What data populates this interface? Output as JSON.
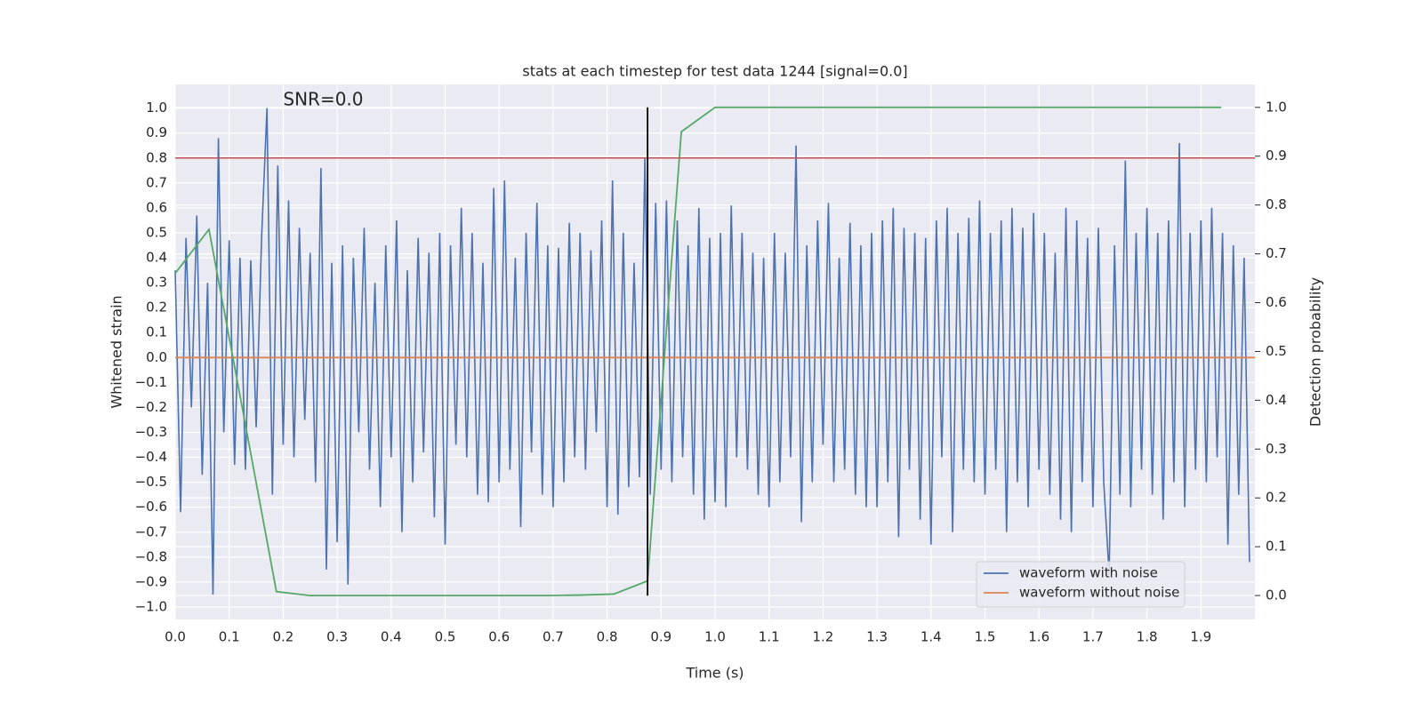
{
  "chart_data": {
    "type": "line",
    "title": "stats at each timestep for test data 1244 [signal=0.0]",
    "xlabel": "Time (s)",
    "ylabel": "Whitened strain",
    "y2label": "Detection probability",
    "annotation": {
      "text": "SNR=0.0",
      "x": 0.2,
      "y": 1.03
    },
    "xlim": [
      0,
      2.0
    ],
    "ylim": [
      -1.05,
      1.095
    ],
    "y2lim": [
      -0.049,
      1.047
    ],
    "xticks": [
      {
        "value": 0,
        "label": "0.0"
      },
      0.1,
      0.2,
      0.3,
      0.4,
      0.5,
      0.6,
      0.7,
      0.8,
      0.9,
      {
        "value": 1,
        "label": "1.0"
      },
      1.1,
      1.2,
      1.3,
      1.4,
      1.5,
      1.6,
      1.7,
      1.8,
      1.9
    ],
    "yticks": [
      {
        "value": -1,
        "label": "−1.0"
      },
      {
        "value": -0.9,
        "label": "−0.9"
      },
      {
        "value": -0.8,
        "label": "−0.8"
      },
      {
        "value": -0.7,
        "label": "−0.7"
      },
      {
        "value": -0.6,
        "label": "−0.6"
      },
      {
        "value": -0.5,
        "label": "−0.5"
      },
      {
        "value": -0.4,
        "label": "−0.4"
      },
      {
        "value": -0.3,
        "label": "−0.3"
      },
      {
        "value": -0.2,
        "label": "−0.2"
      },
      {
        "value": -0.1,
        "label": "−0.1"
      },
      {
        "value": 0,
        "label": "0.0"
      },
      0.1,
      0.2,
      0.3,
      0.4,
      0.5,
      0.6,
      0.7,
      0.8,
      0.9,
      {
        "value": 1,
        "label": "1.0"
      }
    ],
    "y2ticks": [
      {
        "value": 0,
        "label": "0.0"
      },
      0.1,
      0.2,
      0.3,
      0.4,
      0.5,
      0.6,
      0.7,
      0.8,
      0.9,
      {
        "value": 1,
        "label": "1.0"
      }
    ],
    "grid": true,
    "legend": "lower right",
    "hline": {
      "y": 0.8,
      "color": "#c44e52"
    },
    "vline": {
      "x": 0.875,
      "ymin": 0,
      "ymax": 1,
      "axis": "y2",
      "color": "#000000"
    },
    "series": [
      {
        "name": "waveform with noise",
        "color": "#4c72b0",
        "x": [
          0.0,
          0.01,
          0.02,
          0.03,
          0.04,
          0.05,
          0.06,
          0.07,
          0.08,
          0.09,
          0.1,
          0.11,
          0.12,
          0.13,
          0.14,
          0.15,
          0.16,
          0.17,
          0.18,
          0.19,
          0.2,
          0.21,
          0.22,
          0.23,
          0.24,
          0.25,
          0.26,
          0.27,
          0.28,
          0.29,
          0.3,
          0.31,
          0.32,
          0.33,
          0.34,
          0.35,
          0.36,
          0.37,
          0.38,
          0.39,
          0.4,
          0.41,
          0.42,
          0.43,
          0.44,
          0.45,
          0.46,
          0.47,
          0.48,
          0.49,
          0.5,
          0.51,
          0.52,
          0.53,
          0.54,
          0.55,
          0.56,
          0.57,
          0.58,
          0.59,
          0.6,
          0.61,
          0.62,
          0.63,
          0.64,
          0.65,
          0.66,
          0.67,
          0.68,
          0.69,
          0.7,
          0.71,
          0.72,
          0.73,
          0.74,
          0.75,
          0.76,
          0.77,
          0.78,
          0.79,
          0.8,
          0.81,
          0.82,
          0.83,
          0.84,
          0.85,
          0.86,
          0.87,
          0.88,
          0.89,
          0.9,
          0.91,
          0.92,
          0.93,
          0.94,
          0.95,
          0.96,
          0.97,
          0.98,
          0.99,
          1.0,
          1.01,
          1.02,
          1.03,
          1.04,
          1.05,
          1.06,
          1.07,
          1.08,
          1.09,
          1.1,
          1.11,
          1.12,
          1.13,
          1.14,
          1.15,
          1.16,
          1.17,
          1.18,
          1.19,
          1.2,
          1.21,
          1.22,
          1.23,
          1.24,
          1.25,
          1.26,
          1.27,
          1.28,
          1.29,
          1.3,
          1.31,
          1.32,
          1.33,
          1.34,
          1.35,
          1.36,
          1.37,
          1.38,
          1.39,
          1.4,
          1.41,
          1.42,
          1.43,
          1.44,
          1.45,
          1.46,
          1.47,
          1.48,
          1.49,
          1.5,
          1.51,
          1.52,
          1.53,
          1.54,
          1.55,
          1.56,
          1.57,
          1.58,
          1.59,
          1.6,
          1.61,
          1.62,
          1.63,
          1.64,
          1.65,
          1.66,
          1.67,
          1.68,
          1.69,
          1.7,
          1.71,
          1.72,
          1.73,
          1.74,
          1.75,
          1.76,
          1.77,
          1.78,
          1.79,
          1.8,
          1.81,
          1.82,
          1.83,
          1.84,
          1.85,
          1.86,
          1.87,
          1.88,
          1.89,
          1.9,
          1.91,
          1.92,
          1.93,
          1.94,
          1.95,
          1.96,
          1.97,
          1.98,
          1.99
        ],
        "values": [
          0.35,
          -0.62,
          0.48,
          -0.2,
          0.57,
          -0.47,
          0.3,
          -0.95,
          0.88,
          -0.3,
          0.47,
          -0.43,
          0.4,
          -0.45,
          0.39,
          -0.28,
          0.48,
          1.0,
          -0.55,
          0.77,
          -0.35,
          0.63,
          -0.4,
          0.52,
          -0.25,
          0.42,
          -0.5,
          0.76,
          -0.85,
          0.38,
          -0.74,
          0.45,
          -0.91,
          0.4,
          -0.3,
          0.52,
          -0.45,
          0.3,
          -0.6,
          0.45,
          -0.4,
          0.55,
          -0.7,
          0.35,
          -0.5,
          0.48,
          -0.38,
          0.42,
          -0.64,
          0.5,
          -0.75,
          0.45,
          -0.35,
          0.6,
          -0.4,
          0.5,
          -0.55,
          0.38,
          -0.58,
          0.68,
          -0.5,
          0.71,
          -0.45,
          0.4,
          -0.68,
          0.5,
          -0.38,
          0.62,
          -0.55,
          0.45,
          -0.6,
          0.44,
          -0.5,
          0.54,
          -0.4,
          0.5,
          -0.45,
          0.43,
          -0.3,
          0.55,
          -0.6,
          0.71,
          -0.63,
          0.5,
          -0.52,
          0.38,
          -0.48,
          0.8,
          -0.55,
          0.62,
          -0.45,
          0.63,
          -0.5,
          0.55,
          -0.4,
          0.45,
          -0.55,
          0.6,
          -0.65,
          0.48,
          -0.58,
          0.5,
          -0.6,
          0.61,
          -0.4,
          0.5,
          -0.45,
          0.42,
          -0.55,
          0.4,
          -0.6,
          0.5,
          -0.5,
          0.42,
          -0.4,
          0.85,
          -0.66,
          0.45,
          -0.5,
          0.55,
          -0.35,
          0.62,
          -0.5,
          0.4,
          -0.45,
          0.54,
          -0.55,
          0.45,
          -0.6,
          0.5,
          -0.6,
          0.55,
          -0.5,
          0.6,
          -0.72,
          0.52,
          -0.45,
          0.5,
          -0.65,
          0.48,
          -0.75,
          0.55,
          -0.4,
          0.6,
          -0.7,
          0.5,
          -0.45,
          0.56,
          -0.5,
          0.63,
          -0.55,
          0.5,
          -0.45,
          0.55,
          -0.7,
          0.6,
          -0.5,
          0.52,
          -0.6,
          0.58,
          -0.45,
          0.5,
          -0.55,
          0.42,
          -0.65,
          0.6,
          -0.7,
          0.55,
          -0.5,
          0.48,
          -0.6,
          0.52,
          -0.5,
          -0.87,
          0.45,
          -0.55,
          0.79,
          -0.6,
          0.5,
          -0.45,
          0.6,
          -0.55,
          0.5,
          -0.65,
          0.55,
          -0.5,
          0.86,
          -0.6,
          0.5,
          -0.45,
          0.55,
          -0.5,
          0.6,
          -0.4,
          0.5,
          -0.75,
          0.45,
          -0.55,
          0.4,
          -0.82
        ]
      },
      {
        "name": "waveform without noise",
        "color": "#dd8452",
        "x": [
          0,
          2.0
        ],
        "values": [
          0,
          0
        ]
      },
      {
        "color": "#55a868",
        "axis": "y2",
        "x": [
          0,
          0.0625,
          0.125,
          0.1875,
          0.25,
          0.3125,
          0.375,
          0.4375,
          0.5,
          0.5625,
          0.625,
          0.6875,
          0.75,
          0.8125,
          0.875,
          0.9375,
          1.0,
          1.0625,
          1.125,
          1.1875,
          1.25,
          1.3125,
          1.375,
          1.4375,
          1.5,
          1.5625,
          1.625,
          1.6875,
          1.75,
          1.8125,
          1.875,
          1.9375
        ],
        "values": [
          0.66,
          0.75,
          0.38,
          0.008,
          0.0,
          0.0,
          0.0,
          0.0,
          0.0,
          0.0,
          0.0,
          0.0,
          0.001,
          0.003,
          0.03,
          0.95,
          1.0,
          1.0,
          1.0,
          1.0,
          1.0,
          1.0,
          1.0,
          1.0,
          1.0,
          1.0,
          1.0,
          1.0,
          1.0,
          1.0,
          1.0,
          1.0
        ]
      }
    ]
  }
}
